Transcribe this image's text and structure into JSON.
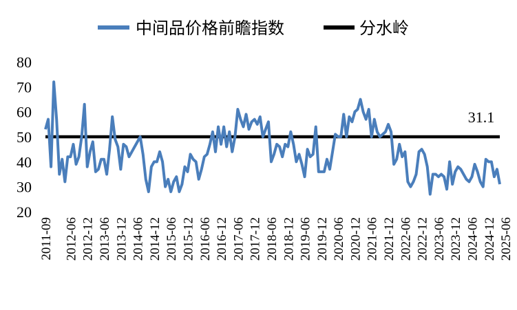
{
  "chart_data": {
    "type": "line",
    "legend_placement": "top-center",
    "grid": false,
    "ylim": [
      20,
      80
    ],
    "yticks": [
      20,
      30,
      40,
      50,
      60,
      70,
      80
    ],
    "x_start": "2011-09",
    "x_ticks": [
      "2011-09",
      "2012-06",
      "2012-12",
      "2013-06",
      "2013-12",
      "2014-06",
      "2014-12",
      "2015-06",
      "2015-12",
      "2016-06",
      "2016-12",
      "2017-06",
      "2017-12",
      "2018-06",
      "2018-12",
      "2019-06",
      "2019-12",
      "2020-06",
      "2020-12",
      "2021-06",
      "2021-12",
      "2022-06",
      "2022-12",
      "2023-06",
      "2023-12",
      "2024-06",
      "2024-12",
      "2025-06"
    ],
    "series": [
      {
        "name": "中间品价格前瞻指数",
        "color": "#4a7ebb",
        "values": [
          53,
          57,
          38,
          72,
          57,
          35,
          41,
          32,
          42,
          42,
          47,
          39,
          42,
          50,
          63,
          38,
          44,
          48,
          36,
          37,
          41,
          41,
          35,
          45,
          58,
          49,
          46,
          37,
          47,
          46,
          42,
          44,
          46,
          48,
          50,
          43,
          33,
          28,
          38,
          40,
          40,
          44,
          40,
          30,
          33,
          28,
          32,
          34,
          28,
          31,
          38,
          36,
          43,
          41,
          40,
          33,
          37,
          42,
          43,
          47,
          52,
          44,
          54,
          47,
          54,
          46,
          52,
          44,
          50,
          61,
          57,
          54,
          59,
          53,
          56,
          57,
          55,
          58,
          50,
          53,
          56,
          40,
          43,
          47,
          46,
          42,
          47,
          46,
          52,
          47,
          40,
          43,
          39,
          34,
          45,
          42,
          43,
          54,
          36,
          36,
          36,
          41,
          37,
          44,
          51,
          50,
          50,
          59,
          50,
          58,
          56,
          60,
          61,
          65,
          60,
          57,
          61,
          50,
          57,
          52,
          50,
          51,
          52,
          55,
          52,
          39,
          41,
          47,
          42,
          44,
          32,
          30,
          32,
          35,
          44,
          45,
          43,
          38,
          27,
          35,
          35,
          34,
          35,
          34,
          29,
          40,
          31,
          36,
          38,
          37,
          35,
          33,
          32,
          34,
          39,
          36,
          32,
          30,
          41,
          40,
          40,
          34,
          37,
          31
        ]
      },
      {
        "name": "分水岭",
        "color": "#000000",
        "constant": 50
      }
    ],
    "annotation": "31.1"
  }
}
